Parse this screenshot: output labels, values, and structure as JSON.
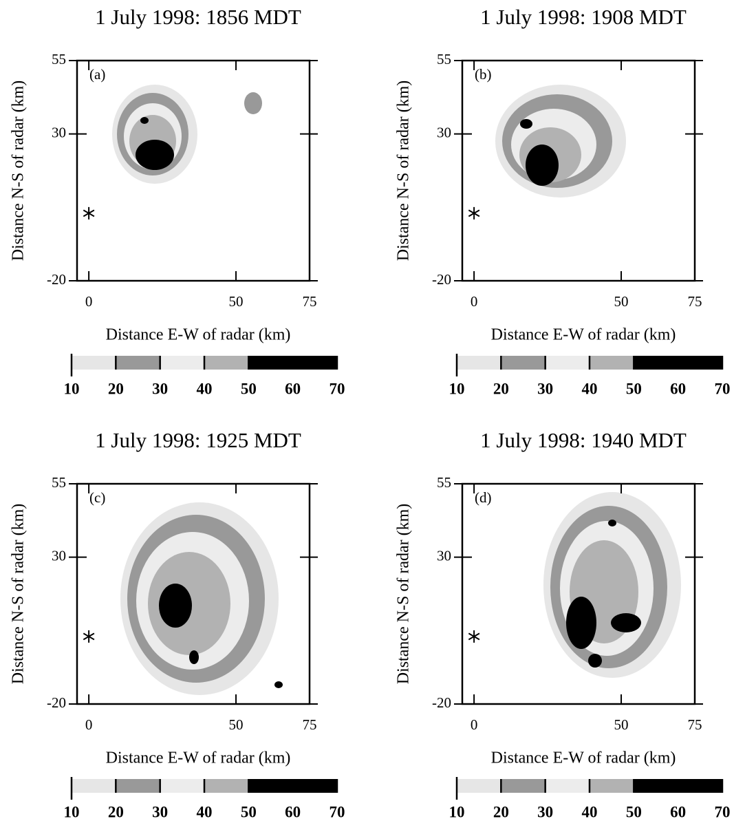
{
  "chart_data": [
    {
      "type": "radar-map",
      "title": "1 July 1998: 1856 MDT",
      "panel_label": "(a)",
      "x_label": "Distance E-W of radar (km)",
      "y_label": "Distance N-S of radar (km)",
      "xlim": [
        -4,
        75
      ],
      "ylim": [
        -20,
        55
      ],
      "xticks": [
        0,
        50,
        75
      ],
      "yticks": [
        -20,
        30,
        55
      ],
      "radar": {
        "x": 0,
        "y": 3
      },
      "colorbar": {
        "bounds": [
          10,
          20,
          30,
          40,
          50,
          70
        ],
        "colors": [
          "#e6e6e6",
          "#999999",
          "#ececec",
          "#b2b2b2",
          "#000000"
        ],
        "ticks": [
          10,
          20,
          30,
          40,
          50,
          60,
          70
        ],
        "lim": [
          10,
          70
        ]
      }
    },
    {
      "type": "radar-map",
      "title": "1 July 1998: 1908 MDT",
      "panel_label": "(b)",
      "x_label": "Distance E-W of radar (km)",
      "y_label": "Distance N-S of radar (km)",
      "xlim": [
        -4,
        75
      ],
      "ylim": [
        -20,
        55
      ],
      "xticks": [
        0,
        50,
        75
      ],
      "yticks": [
        -20,
        30,
        55
      ],
      "radar": {
        "x": 0,
        "y": 3
      },
      "colorbar": {
        "bounds": [
          10,
          20,
          30,
          40,
          50,
          70
        ],
        "colors": [
          "#e6e6e6",
          "#999999",
          "#ececec",
          "#b2b2b2",
          "#000000"
        ],
        "ticks": [
          10,
          20,
          30,
          40,
          50,
          60,
          70
        ],
        "lim": [
          10,
          70
        ]
      }
    },
    {
      "type": "radar-map",
      "title": "1 July 1998: 1925 MDT",
      "panel_label": "(c)",
      "x_label": "Distance E-W of radar (km)",
      "y_label": "Distance N-S of radar (km)",
      "xlim": [
        -4,
        75
      ],
      "ylim": [
        -20,
        55
      ],
      "xticks": [
        0,
        50,
        75
      ],
      "yticks": [
        -20,
        30,
        55
      ],
      "radar": {
        "x": 0,
        "y": 3
      },
      "colorbar": {
        "bounds": [
          10,
          20,
          30,
          40,
          50,
          70
        ],
        "colors": [
          "#e6e6e6",
          "#999999",
          "#ececec",
          "#b2b2b2",
          "#000000"
        ],
        "ticks": [
          10,
          20,
          30,
          40,
          50,
          60,
          70
        ],
        "lim": [
          10,
          70
        ]
      }
    },
    {
      "type": "radar-map",
      "title": "1 July 1998: 1940 MDT",
      "panel_label": "(d)",
      "x_label": "Distance E-W of radar (km)",
      "y_label": "Distance N-S of radar (km)",
      "xlim": [
        -4,
        75
      ],
      "ylim": [
        -20,
        55
      ],
      "xticks": [
        0,
        50,
        75
      ],
      "yticks": [
        -20,
        30,
        55
      ],
      "radar": {
        "x": 0,
        "y": 3
      },
      "colorbar": {
        "bounds": [
          10,
          20,
          30,
          40,
          50,
          70
        ],
        "colors": [
          "#e6e6e6",
          "#999999",
          "#ececec",
          "#b2b2b2",
          "#000000"
        ],
        "ticks": [
          10,
          20,
          30,
          40,
          50,
          60,
          70
        ],
        "lim": [
          10,
          70
        ]
      }
    }
  ]
}
